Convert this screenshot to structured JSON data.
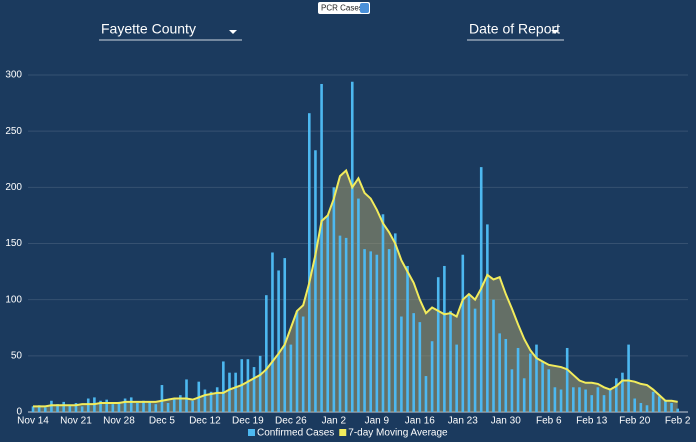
{
  "ui": {
    "button": "PCR Cases",
    "county": "Fayette County",
    "sort": "Date of Report"
  },
  "chart_data": {
    "type": "bar",
    "categories": [
      "Nov 14",
      null,
      null,
      null,
      null,
      null,
      null,
      "Nov 21",
      null,
      null,
      null,
      null,
      null,
      null,
      "Nov 28",
      null,
      null,
      null,
      null,
      null,
      null,
      "Dec 5",
      null,
      null,
      null,
      null,
      null,
      null,
      "Dec 12",
      null,
      null,
      null,
      null,
      null,
      null,
      "Dec 19",
      null,
      null,
      null,
      null,
      null,
      null,
      "Dec 26",
      null,
      null,
      null,
      null,
      null,
      null,
      "Jan 2",
      null,
      null,
      null,
      null,
      null,
      null,
      "Jan 9",
      null,
      null,
      null,
      null,
      null,
      null,
      "Jan 16",
      null,
      null,
      null,
      null,
      null,
      null,
      "Jan 23",
      null,
      null,
      null,
      null,
      null,
      null,
      "Jan 30",
      null,
      null,
      null,
      null,
      null,
      null,
      "Feb 6",
      null,
      null,
      null,
      null,
      null,
      null,
      "Feb 13",
      null,
      null,
      null,
      null,
      null,
      null,
      "Feb 20",
      null,
      null,
      null,
      null,
      null,
      null,
      "Feb 2"
    ],
    "series": [
      {
        "name": "Confirmed Cases",
        "type": "bar",
        "color": "#4db8f0",
        "values": [
          5,
          6,
          4,
          10,
          7,
          9,
          6,
          8,
          5,
          12,
          13,
          10,
          11,
          7,
          9,
          12,
          13,
          8,
          10,
          9,
          7,
          24,
          8,
          12,
          15,
          29,
          10,
          27,
          20,
          18,
          22,
          45,
          35,
          35,
          47,
          47,
          40,
          50,
          104,
          142,
          126,
          137,
          60,
          90,
          85,
          266,
          233,
          292,
          175,
          200,
          157,
          155,
          294,
          190,
          145,
          143,
          140,
          176,
          145,
          159,
          85,
          130,
          88,
          80,
          32,
          63,
          120,
          130,
          90,
          60,
          140,
          105,
          92,
          218,
          167,
          100,
          70,
          65,
          38,
          57,
          30,
          52,
          60,
          45,
          38,
          22,
          20,
          57,
          22,
          22,
          20,
          15,
          22,
          15,
          20,
          30,
          35,
          60,
          12,
          8,
          6,
          18,
          14,
          10,
          8,
          3
        ]
      },
      {
        "name": "7-day Moving Average",
        "type": "line",
        "color": "#f2ec5c",
        "values": [
          5,
          5,
          5,
          6,
          6,
          6,
          6,
          6,
          7,
          7,
          7,
          8,
          8,
          8,
          8,
          9,
          9,
          9,
          9,
          9,
          9,
          10,
          11,
          12,
          12,
          12,
          11,
          13,
          15,
          16,
          17,
          17,
          20,
          22,
          24,
          27,
          30,
          33,
          38,
          45,
          52,
          60,
          75,
          90,
          95,
          115,
          140,
          170,
          175,
          190,
          210,
          215,
          200,
          208,
          195,
          190,
          180,
          168,
          160,
          150,
          135,
          125,
          115,
          100,
          88,
          93,
          90,
          87,
          88,
          85,
          100,
          105,
          100,
          110,
          122,
          118,
          120,
          105,
          92,
          78,
          65,
          55,
          48,
          45,
          42,
          41,
          40,
          38,
          33,
          28,
          26,
          26,
          25,
          22,
          20,
          23,
          28,
          28,
          27,
          25,
          24,
          20,
          15,
          10,
          10,
          9
        ]
      }
    ],
    "ylim": [
      0,
      300
    ],
    "yticks": [
      0,
      50,
      100,
      150,
      200,
      250,
      300
    ],
    "grid": true,
    "legend": "bottom"
  }
}
